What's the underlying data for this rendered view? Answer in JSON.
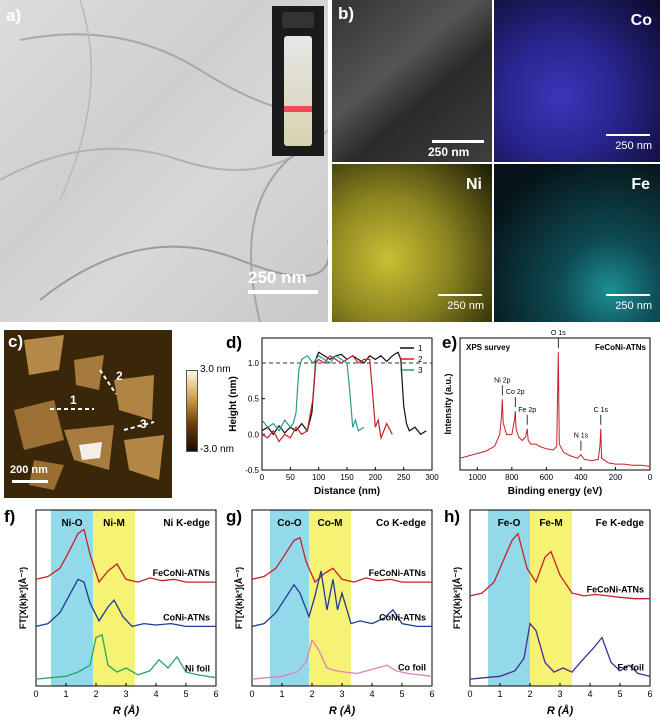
{
  "panel_a": {
    "label": "a)",
    "scale_bar": "250 nm"
  },
  "panel_b": {
    "label": "b)",
    "scale_main": "250 nm",
    "scale_small": "250 nm",
    "elements": [
      "Co",
      "Ni",
      "Fe"
    ]
  },
  "panel_c": {
    "label": "c)",
    "scale_bar": "200 nm",
    "colorbar_max": "3.0 nm",
    "colorbar_min": "-3.0 nm",
    "line_labels": [
      "1",
      "2",
      "3"
    ]
  },
  "colors": {
    "red": "#c8202a",
    "black": "#111111",
    "teal": "#2a9a8c",
    "navy": "#1f3a93",
    "pink": "#e27fbe",
    "purple": "#4b2a8f",
    "cyan_band": "#7fd3e6",
    "yellow_band": "#f4f05a"
  },
  "chart_data": [
    {
      "type": "line",
      "panel": "d)",
      "xlabel": "Distance (nm)",
      "ylabel": "Height (nm)",
      "xlim": [
        0,
        300
      ],
      "ylim": [
        -0.5,
        1.35
      ],
      "xticks": [
        0,
        50,
        100,
        150,
        200,
        250,
        300
      ],
      "yticks": [
        -0.5,
        0.0,
        0.5,
        1.0
      ],
      "reference_line": 1.0,
      "legend": "top-right",
      "series": [
        {
          "name": "1",
          "color": "#111111",
          "x": [
            0,
            10,
            20,
            30,
            40,
            50,
            60,
            70,
            80,
            88,
            95,
            100,
            110,
            120,
            130,
            140,
            150,
            160,
            170,
            180,
            190,
            200,
            210,
            220,
            230,
            240,
            245,
            250,
            255,
            260,
            270,
            280,
            290
          ],
          "y": [
            0.05,
            0.1,
            0.0,
            0.12,
            0.02,
            0.1,
            0.05,
            0.15,
            0.05,
            0.3,
            1.05,
            1.15,
            1.1,
            1.05,
            1.1,
            1.12,
            1.05,
            1.1,
            1.05,
            1.0,
            1.1,
            1.05,
            1.1,
            1.02,
            1.1,
            1.15,
            1.05,
            0.4,
            0.15,
            0.05,
            0.1,
            0.0,
            0.05
          ]
        },
        {
          "name": "2",
          "color": "#c8202a",
          "x": [
            0,
            10,
            20,
            30,
            40,
            50,
            60,
            70,
            80,
            90,
            95,
            100,
            110,
            120,
            130,
            140,
            150,
            160,
            170,
            180,
            190,
            195,
            200,
            205,
            210,
            220,
            230
          ],
          "y": [
            0.0,
            -0.05,
            0.05,
            -0.1,
            0.0,
            -0.05,
            0.1,
            0.0,
            0.05,
            0.5,
            1.0,
            1.05,
            1.0,
            1.1,
            1.05,
            1.0,
            1.05,
            1.1,
            1.0,
            1.05,
            1.05,
            0.6,
            0.1,
            0.2,
            -0.05,
            0.15,
            0.0
          ]
        },
        {
          "name": "3",
          "color": "#2a9a8c",
          "x": [
            0,
            10,
            20,
            30,
            40,
            50,
            55,
            60,
            65,
            70,
            80,
            90,
            100,
            110,
            120,
            130,
            140,
            150,
            155,
            160,
            165,
            170,
            180
          ],
          "y": [
            0.2,
            0.1,
            0.15,
            0.05,
            0.2,
            0.1,
            0.15,
            0.3,
            0.9,
            1.05,
            1.1,
            1.0,
            1.1,
            1.05,
            1.0,
            1.1,
            1.05,
            1.0,
            0.6,
            0.1,
            0.2,
            0.05,
            0.1
          ]
        }
      ]
    },
    {
      "type": "line",
      "panel": "e)",
      "title": "XPS survey",
      "sample": "FeCoNi-ATNs",
      "xlabel": "Binding energy (eV)",
      "ylabel": "Intensity (a.u.)",
      "xlim": [
        1100,
        0
      ],
      "xticks": [
        1000,
        800,
        600,
        400,
        200,
        0
      ],
      "annotations": [
        {
          "text": "Ni 2p",
          "x": 855
        },
        {
          "text": "Co 2p",
          "x": 780
        },
        {
          "text": "Fe 2p",
          "x": 711
        },
        {
          "text": "O 1s",
          "x": 531
        },
        {
          "text": "N 1s",
          "x": 400
        },
        {
          "text": "C 1s",
          "x": 285
        }
      ],
      "series": [
        {
          "name": "FeCoNi-ATNs",
          "color": "#c8202a",
          "x": [
            1100,
            1050,
            1000,
            950,
            900,
            870,
            860,
            855,
            850,
            830,
            800,
            785,
            780,
            775,
            760,
            740,
            720,
            711,
            705,
            690,
            660,
            640,
            600,
            560,
            540,
            531,
            525,
            500,
            460,
            420,
            400,
            380,
            340,
            300,
            290,
            285,
            280,
            240,
            200,
            150,
            100,
            50,
            0
          ],
          "y": [
            0.1,
            0.12,
            0.14,
            0.16,
            0.2,
            0.3,
            0.45,
            0.6,
            0.4,
            0.3,
            0.3,
            0.42,
            0.5,
            0.35,
            0.28,
            0.25,
            0.28,
            0.35,
            0.25,
            0.22,
            0.22,
            0.2,
            0.18,
            0.17,
            0.2,
            1.0,
            0.22,
            0.15,
            0.12,
            0.1,
            0.13,
            0.09,
            0.08,
            0.09,
            0.2,
            0.35,
            0.1,
            0.06,
            0.05,
            0.05,
            0.04,
            0.04,
            0.03
          ]
        }
      ]
    },
    {
      "type": "line",
      "panel": "f)",
      "edge": "Ni K-edge",
      "xlabel": "R (Å)",
      "ylabel": "FT[X(k)k³](Å⁻³)",
      "xlim": [
        0,
        6
      ],
      "xticks": [
        0,
        1,
        2,
        3,
        4,
        5,
        6
      ],
      "bands": [
        {
          "label": "Ni-O",
          "from": 0.5,
          "to": 1.9,
          "color": "cyan"
        },
        {
          "label": "Ni-M",
          "from": 1.9,
          "to": 3.3,
          "color": "yellow"
        }
      ],
      "series": [
        {
          "name": "FeCoNi-ATNs",
          "color": "#c8202a",
          "x": [
            0,
            0.4,
            0.8,
            1.1,
            1.4,
            1.6,
            1.8,
            2.1,
            2.4,
            2.7,
            3.0,
            3.4,
            3.8,
            4.2,
            4.6,
            5.0,
            5.4,
            6.0
          ],
          "y": [
            0.72,
            0.74,
            0.8,
            0.92,
            1.05,
            1.08,
            0.9,
            0.7,
            0.78,
            0.83,
            0.72,
            0.7,
            0.73,
            0.71,
            0.72,
            0.7,
            0.7,
            0.7
          ]
        },
        {
          "name": "CoNi-ATNs",
          "color": "#1f3a93",
          "x": [
            0,
            0.4,
            0.8,
            1.1,
            1.4,
            1.6,
            1.8,
            2.1,
            2.4,
            2.6,
            2.9,
            3.2,
            3.6,
            4.0,
            4.5,
            5.0,
            5.5,
            6.0
          ],
          "y": [
            0.38,
            0.4,
            0.48,
            0.6,
            0.72,
            0.7,
            0.55,
            0.42,
            0.52,
            0.57,
            0.45,
            0.38,
            0.4,
            0.39,
            0.4,
            0.38,
            0.38,
            0.38
          ]
        },
        {
          "name": "Ni foil",
          "color": "#2aa56a",
          "x": [
            0,
            0.5,
            1.0,
            1.4,
            1.8,
            2.0,
            2.2,
            2.4,
            2.7,
            3.0,
            3.4,
            3.8,
            4.1,
            4.4,
            4.7,
            5.0,
            5.4,
            6.0
          ],
          "y": [
            0.0,
            0.01,
            0.02,
            0.05,
            0.1,
            0.3,
            0.32,
            0.1,
            0.05,
            0.08,
            0.03,
            0.06,
            0.14,
            0.08,
            0.16,
            0.05,
            0.03,
            0.01
          ]
        }
      ]
    },
    {
      "type": "line",
      "panel": "g)",
      "edge": "Co K-edge",
      "xlabel": "R (Å)",
      "ylabel": "FT[X(k)k³](Å⁻³)",
      "xlim": [
        0,
        6
      ],
      "xticks": [
        0,
        1,
        2,
        3,
        4,
        5,
        6
      ],
      "bands": [
        {
          "label": "Co-O",
          "from": 0.6,
          "to": 1.9,
          "color": "cyan"
        },
        {
          "label": "Co-M",
          "from": 1.9,
          "to": 3.3,
          "color": "yellow"
        }
      ],
      "series": [
        {
          "name": "FeCoNi-ATNs",
          "color": "#c8202a",
          "x": [
            0,
            0.4,
            0.8,
            1.1,
            1.4,
            1.6,
            1.8,
            2.1,
            2.4,
            2.7,
            3.0,
            3.4,
            3.8,
            4.2,
            4.6,
            5.0,
            5.4,
            6.0
          ],
          "y": [
            0.72,
            0.74,
            0.8,
            0.9,
            1.0,
            1.02,
            0.85,
            0.7,
            0.76,
            0.8,
            0.72,
            0.7,
            0.73,
            0.71,
            0.72,
            0.7,
            0.7,
            0.7
          ]
        },
        {
          "name": "CoNi-ATNs",
          "color": "#1f3a93",
          "x": [
            0,
            0.4,
            0.8,
            1.1,
            1.4,
            1.6,
            1.9,
            2.1,
            2.3,
            2.5,
            2.7,
            2.85,
            3.0,
            3.3,
            3.6,
            4.0,
            4.4,
            4.7,
            5.0,
            5.5,
            6.0
          ],
          "y": [
            0.38,
            0.4,
            0.48,
            0.58,
            0.68,
            0.62,
            0.45,
            0.6,
            0.78,
            0.5,
            0.72,
            0.5,
            0.62,
            0.4,
            0.42,
            0.4,
            0.44,
            0.5,
            0.4,
            0.38,
            0.38
          ]
        },
        {
          "name": "Co foil",
          "color": "#e27fbe",
          "x": [
            0,
            0.5,
            1.0,
            1.5,
            1.8,
            2.0,
            2.2,
            2.5,
            2.8,
            3.1,
            3.5,
            4.0,
            4.5,
            4.8,
            5.2,
            6.0
          ],
          "y": [
            0.0,
            0.01,
            0.02,
            0.05,
            0.12,
            0.28,
            0.22,
            0.08,
            0.06,
            0.05,
            0.04,
            0.07,
            0.1,
            0.06,
            0.04,
            0.02
          ]
        }
      ]
    },
    {
      "type": "line",
      "panel": "h)",
      "edge": "Fe K-edge",
      "xlabel": "R (Å)",
      "ylabel": "FT[X(k)k³](Å⁻³)",
      "xlim": [
        0,
        6
      ],
      "xticks": [
        0,
        1,
        2,
        3,
        4,
        5,
        6
      ],
      "bands": [
        {
          "label": "Fe-O",
          "from": 0.6,
          "to": 2.0,
          "color": "cyan"
        },
        {
          "label": "Fe-M",
          "from": 2.0,
          "to": 3.4,
          "color": "yellow"
        }
      ],
      "series": [
        {
          "name": "FeCoNi-ATNs",
          "color": "#c8202a",
          "x": [
            0,
            0.4,
            0.8,
            1.1,
            1.4,
            1.6,
            1.9,
            2.2,
            2.5,
            2.7,
            3.0,
            3.4,
            3.8,
            4.2,
            4.6,
            5.0,
            5.5,
            6.0
          ],
          "y": [
            0.6,
            0.62,
            0.7,
            0.85,
            1.0,
            1.05,
            0.8,
            0.7,
            0.88,
            0.92,
            0.75,
            0.62,
            0.6,
            0.61,
            0.6,
            0.59,
            0.58,
            0.58
          ]
        },
        {
          "name": "Fe foil",
          "color": "#4b2a8f",
          "x": [
            0,
            0.5,
            1.0,
            1.5,
            1.8,
            2.0,
            2.2,
            2.5,
            2.8,
            3.1,
            3.4,
            3.8,
            4.1,
            4.4,
            4.7,
            5.0,
            5.3,
            5.6,
            6.0
          ],
          "y": [
            0.0,
            0.01,
            0.02,
            0.06,
            0.15,
            0.4,
            0.35,
            0.12,
            0.05,
            0.08,
            0.05,
            0.15,
            0.22,
            0.3,
            0.12,
            0.06,
            0.1,
            0.04,
            0.02
          ]
        }
      ]
    }
  ]
}
